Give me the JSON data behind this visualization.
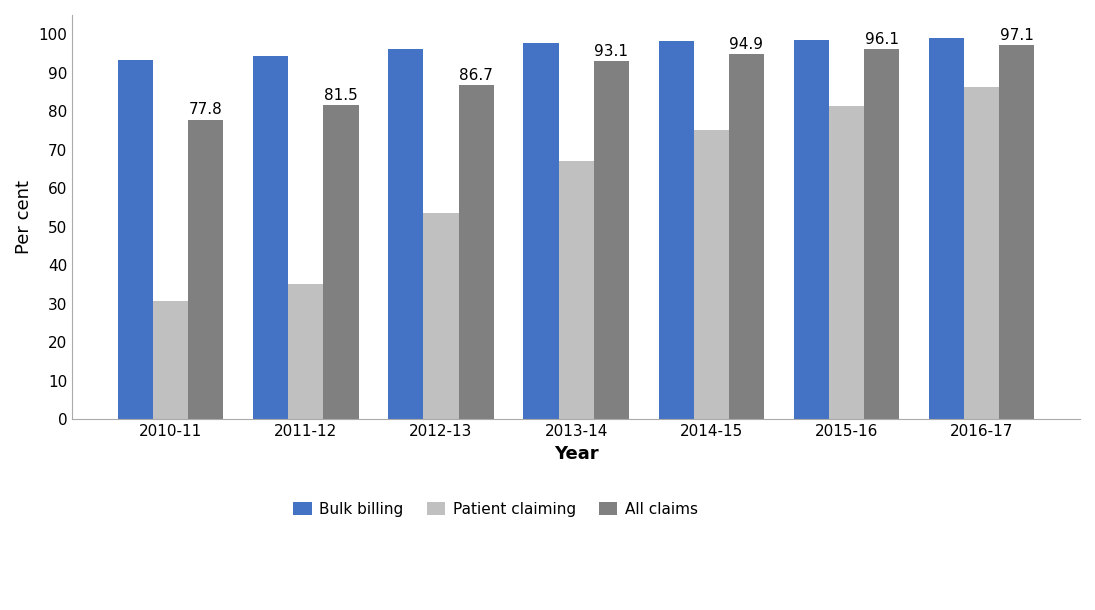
{
  "years": [
    "2010-11",
    "2011-12",
    "2012-13",
    "2013-14",
    "2014-15",
    "2015-16",
    "2016-17"
  ],
  "bulk_billing": [
    93.2,
    94.3,
    96.1,
    97.7,
    98.2,
    98.6,
    99.0
  ],
  "patient_claiming": [
    30.7,
    35.2,
    53.5,
    67.1,
    75.0,
    81.4,
    86.4
  ],
  "all_claims": [
    77.8,
    81.5,
    86.7,
    93.1,
    94.9,
    96.1,
    97.1
  ],
  "all_claims_labels": [
    77.8,
    81.5,
    86.7,
    93.1,
    94.9,
    96.1,
    97.1
  ],
  "bulk_billing_color": "#4472C4",
  "patient_claiming_color": "#C0C0C0",
  "all_claims_color": "#808080",
  "ylabel": "Per cent",
  "xlabel": "Year",
  "ylim": [
    0,
    105
  ],
  "yticks": [
    0,
    10,
    20,
    30,
    40,
    50,
    60,
    70,
    80,
    90,
    100
  ],
  "legend_labels": [
    "Bulk billing",
    "Patient claiming",
    "All claims"
  ],
  "bar_width": 0.26,
  "label_fontsize": 11,
  "tick_fontsize": 11,
  "axis_label_fontsize": 13,
  "legend_fontsize": 11
}
